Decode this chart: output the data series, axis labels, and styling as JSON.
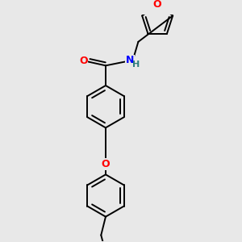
{
  "background_color": "#e8e8e8",
  "bond_color": "#000000",
  "O_color": "#ff0000",
  "N_color": "#0000ff",
  "lw": 1.4,
  "xlim": [
    -1.2,
    1.8
  ],
  "ylim": [
    -3.8,
    2.2
  ],
  "ring_r": 0.55
}
